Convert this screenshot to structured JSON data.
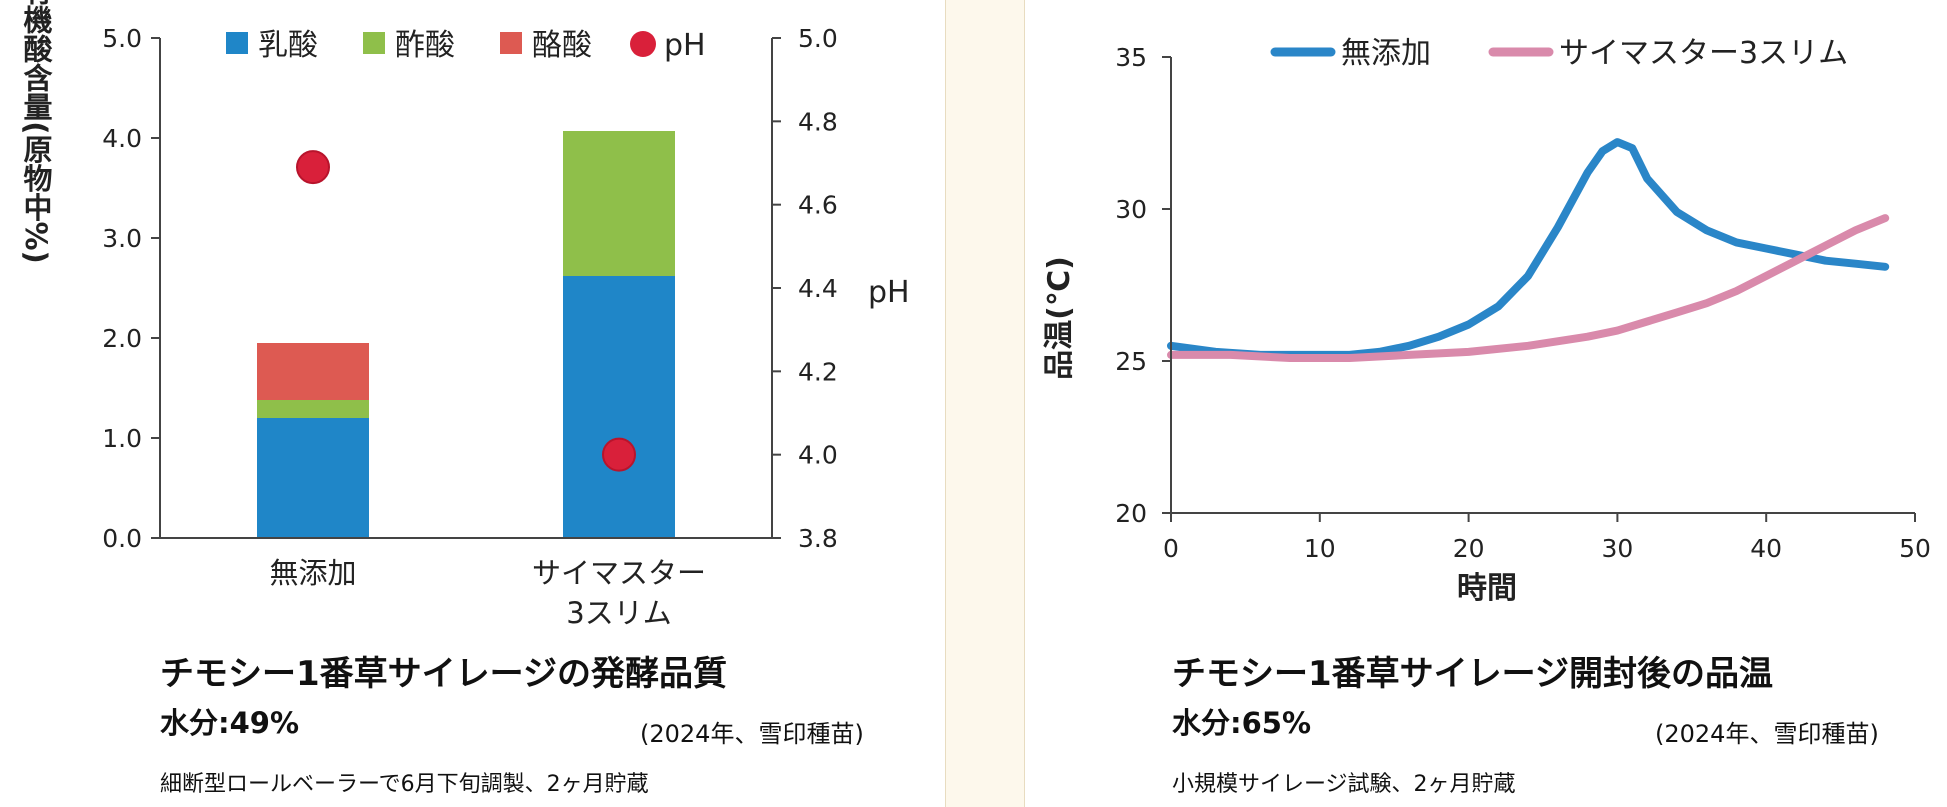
{
  "chart_data": [
    {
      "type": "bar",
      "stacked": true,
      "categories": [
        [
          "無添加"
        ],
        [
          "サイマスター",
          "3スリム"
        ]
      ],
      "series": [
        {
          "name": "乳酸",
          "values": [
            1.2,
            2.62
          ],
          "color": "#1f86c8"
        },
        {
          "name": "酢酸",
          "values": [
            0.18,
            1.45
          ],
          "color": "#8fbf4a"
        },
        {
          "name": "酪酸",
          "values": [
            0.57,
            0.0
          ],
          "color": "#dd5a52"
        }
      ],
      "ph": {
        "name": "pH",
        "values": [
          4.69,
          4.0
        ],
        "color": "#d9203a"
      },
      "ylabel": "有機酸含量(原物中%)",
      "y2label": "pH",
      "ylim": [
        0,
        5
      ],
      "y2lim": [
        3.8,
        5.0
      ],
      "yticks": [
        "0.0",
        "1.0",
        "2.0",
        "3.0",
        "4.0",
        "5.0"
      ],
      "y2ticks": [
        "3.8",
        "4.0",
        "4.2",
        "4.4",
        "4.6",
        "4.8",
        "5.0"
      ],
      "legend": "top"
    },
    {
      "type": "line",
      "xlabel": "時間",
      "ylabel": "品温(℃)",
      "xlim": [
        0,
        50
      ],
      "ylim": [
        20,
        35
      ],
      "xticks": [
        "0",
        "10",
        "20",
        "30",
        "40",
        "50"
      ],
      "yticks": [
        "20",
        "25",
        "30",
        "35"
      ],
      "legend": "top",
      "series": [
        {
          "name": "無添加",
          "color": "#2a86c8",
          "x": [
            0,
            3,
            6,
            9,
            12,
            14,
            16,
            18,
            20,
            22,
            24,
            26,
            28,
            29,
            30,
            31,
            32,
            34,
            36,
            38,
            40,
            42,
            44,
            46,
            48
          ],
          "y": [
            25.5,
            25.3,
            25.2,
            25.2,
            25.2,
            25.3,
            25.5,
            25.8,
            26.2,
            26.8,
            27.8,
            29.4,
            31.2,
            31.9,
            32.2,
            32.0,
            31.0,
            29.9,
            29.3,
            28.9,
            28.7,
            28.5,
            28.3,
            28.2,
            28.1
          ]
        },
        {
          "name": "サイマスター3スリム",
          "color": "#d98aab",
          "x": [
            0,
            4,
            8,
            12,
            16,
            20,
            24,
            28,
            30,
            32,
            34,
            36,
            38,
            40,
            42,
            44,
            46,
            48
          ],
          "y": [
            25.2,
            25.2,
            25.1,
            25.1,
            25.2,
            25.3,
            25.5,
            25.8,
            26.0,
            26.3,
            26.6,
            26.9,
            27.3,
            27.8,
            28.3,
            28.8,
            29.3,
            29.7
          ]
        }
      ]
    }
  ],
  "left_caption": {
    "title": "チモシー1番草サイレージの発酵品質",
    "moisture": "水分:49%",
    "source": "(2024年、雪印種苗)",
    "note": "細断型ロールベーラーで6月下旬調製、2ヶ月貯蔵"
  },
  "right_caption": {
    "title": "チモシー1番草サイレージ開封後の品温",
    "moisture": "水分:65%",
    "source": "(2024年、雪印種苗)",
    "note": "小規模サイレージ試験、2ヶ月貯蔵"
  }
}
